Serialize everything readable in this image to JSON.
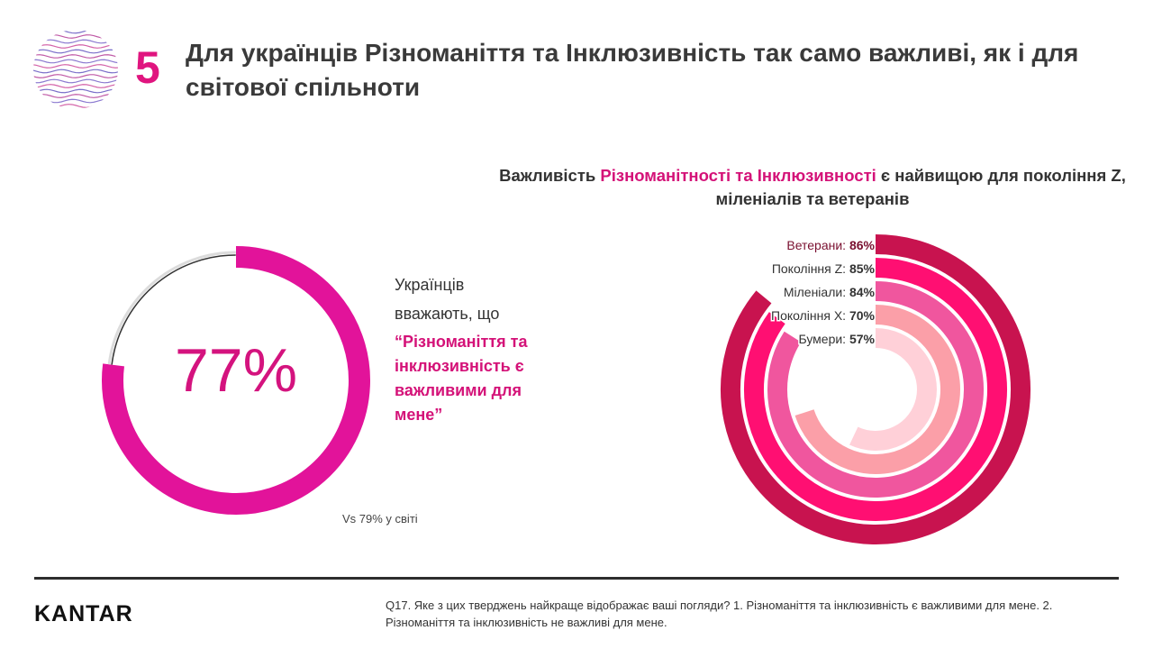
{
  "slide": {
    "number": "5",
    "title": "Для українців Різноманіття та Інклюзивність так само важливі, як і для світової спільноти"
  },
  "left": {
    "big_value": "77%",
    "statement_line1": "Українців",
    "statement_line2": "вважають, що",
    "statement_quote": "“Різноманіття та\n інклюзивність є\n важливими для\n мене”",
    "comparison": "Vs 79% у світі"
  },
  "right": {
    "title_part1": "Важливість ",
    "title_highlight": "Різноманітності та Інклюзивності",
    "title_part2": " є найвищою для покоління Z, міленіалів та ветеранів"
  },
  "footer": {
    "brand": "KANTAR",
    "question": "Q17. Яке з цих тверджень найкраще відображає ваші погляди? 1. Різноманіття та інклюзивність є важливими для мене. 2. Різноманіття та інклюзивність не важливі для мене."
  },
  "colors": {
    "accent": "#e0157f",
    "main_donut": "#e2139a",
    "remainder": "#dcdcdc"
  },
  "icons": {
    "logo": "wave-circle-icon"
  },
  "chart_data": [
    {
      "type": "pie",
      "series": [
        {
          "values": [
            77,
            23
          ]
        }
      ],
      "center_label": "77%"
    },
    {
      "type": "bar",
      "subtype": "radial",
      "categories": [
        "Ветерани:",
        "Покоління Z:",
        "Міленіали:",
        "Покоління Х:",
        "Бумери:"
      ],
      "values": [
        86,
        85,
        84,
        70,
        57
      ],
      "value_labels": [
        "86%",
        "85%",
        "84%",
        "70%",
        "57%"
      ],
      "label_colors": [
        "#7a1030",
        "#333333",
        "#333333",
        "#333333",
        "#333333"
      ],
      "colors": [
        "#c8134f",
        "#ff0f72",
        "#f0569e",
        "#fb9fa8",
        "#ffd0d8"
      ],
      "ylim": [
        0,
        100
      ]
    }
  ]
}
